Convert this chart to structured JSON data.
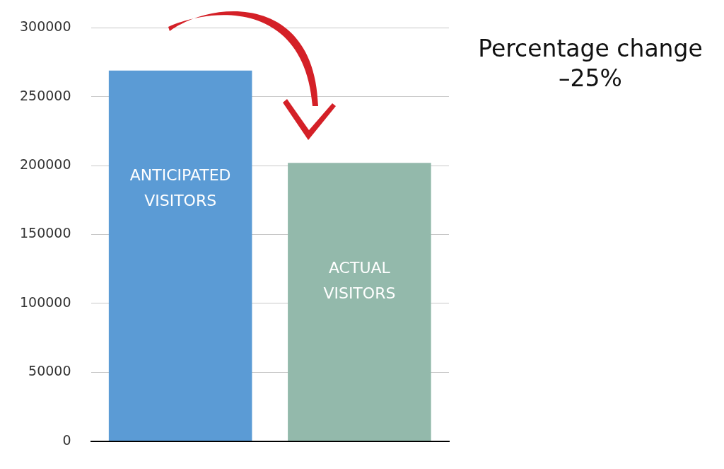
{
  "chart_data": {
    "type": "bar",
    "categories": [
      "ANTICIPATED VISITORS",
      "ACTUAL VISITORS"
    ],
    "values": [
      269000,
      202000
    ],
    "colors": [
      "#5b9bd5",
      "#93b9ab"
    ],
    "ylim": [
      0,
      300000
    ],
    "yticks": [
      0,
      50000,
      100000,
      150000,
      200000,
      250000,
      300000
    ],
    "grid": "y",
    "legend": false,
    "annotations": [
      "Percentage change\n–25%"
    ]
  }
}
